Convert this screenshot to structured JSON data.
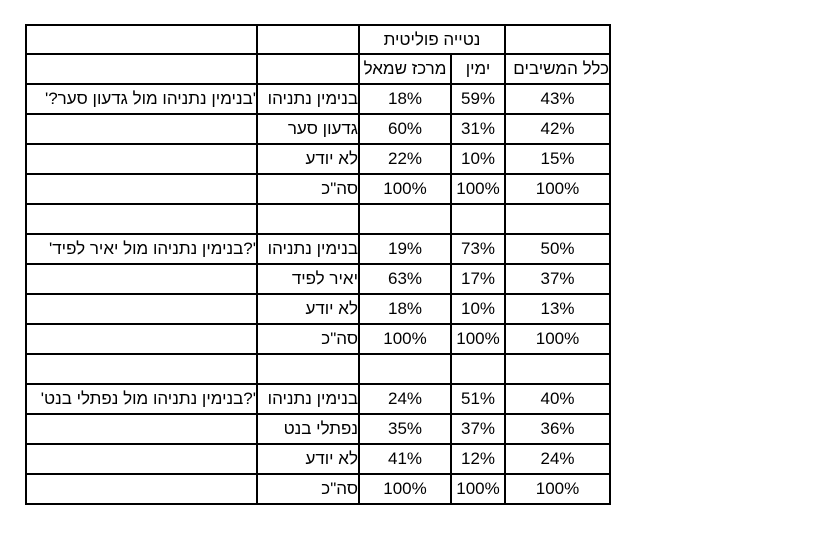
{
  "header": {
    "group_label": "נטייה פוליטית",
    "col_left": "מרכז שמאל",
    "col_right": "ימין",
    "col_all": "כלל המשיבים"
  },
  "blocks": [
    {
      "question": "'בנימין נתניהו מול גדעון סער?'",
      "rows": [
        {
          "answer": "בנימין נתניהו",
          "left": "18%",
          "right": "59%",
          "all": "43%"
        },
        {
          "answer": "גדעון סער",
          "left": "60%",
          "right": "31%",
          "all": "42%"
        },
        {
          "answer": "לא יודע",
          "left": "22%",
          "right": "10%",
          "all": "15%"
        },
        {
          "answer": "סה\"כ",
          "left": "100%",
          "right": "100%",
          "all": "100%"
        }
      ]
    },
    {
      "question": "'?בנימין נתניהו מול יאיר לפיד'",
      "rows": [
        {
          "answer": "בנימין נתניהו",
          "left": "19%",
          "right": "73%",
          "all": "50%"
        },
        {
          "answer": "יאיר לפיד",
          "left": "63%",
          "right": "17%",
          "all": "37%"
        },
        {
          "answer": "לא יודע",
          "left": "18%",
          "right": "10%",
          "all": "13%"
        },
        {
          "answer": "סה\"כ",
          "left": "100%",
          "right": "100%",
          "all": "100%"
        }
      ]
    },
    {
      "question": "'?בנימין נתניהו מול נפתלי בנט'",
      "rows": [
        {
          "answer": "בנימין נתניהו",
          "left": "24%",
          "right": "51%",
          "all": "40%"
        },
        {
          "answer": "נפתלי בנט",
          "left": "35%",
          "right": "37%",
          "all": "36%"
        },
        {
          "answer": "לא יודע",
          "left": "41%",
          "right": "12%",
          "all": "24%"
        },
        {
          "answer": "סה\"כ",
          "left": "100%",
          "right": "100%",
          "all": "100%"
        }
      ]
    }
  ]
}
